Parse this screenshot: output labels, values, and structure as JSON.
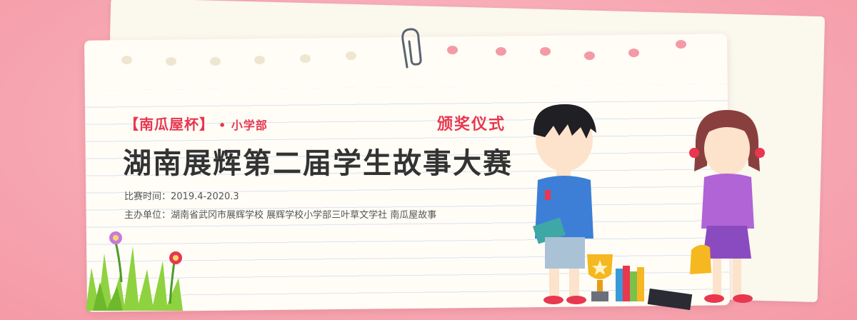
{
  "banner": {
    "event_tag": "【南瓜屋杯】",
    "event_sub": "• 小学部",
    "ceremony": "颁奖仪式",
    "title": "湖南展辉第二届学生故事大赛",
    "time_label": "比赛时间：2019.4-2020.3",
    "organizer_label": "主办单位：湖南省武冈市展辉学校  展辉学校小学部三叶草文学社  南瓜屋故事"
  },
  "colors": {
    "background": "#f7aab5",
    "accent": "#e8374f",
    "paper": "#fffdf6",
    "title_text": "#333333"
  }
}
